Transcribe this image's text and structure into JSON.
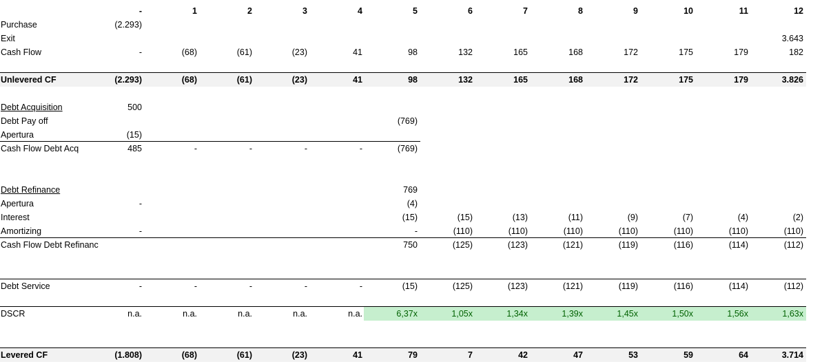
{
  "table": {
    "header": [
      "-",
      "1",
      "2",
      "3",
      "4",
      "5",
      "6",
      "7",
      "8",
      "9",
      "10",
      "11",
      "12"
    ],
    "rows": [
      {
        "label": "Purchase",
        "cells": [
          "(2.293)",
          null,
          null,
          null,
          null,
          null,
          null,
          null,
          null,
          null,
          null,
          null,
          null
        ]
      },
      {
        "label": "Exit",
        "cells": [
          null,
          null,
          null,
          null,
          null,
          null,
          null,
          null,
          null,
          null,
          null,
          null,
          "3.643"
        ]
      },
      {
        "label": "Cash Flow",
        "cells": [
          "-",
          "(68)",
          "(61)",
          "(23)",
          "41",
          "98",
          "132",
          "165",
          "168",
          "172",
          "175",
          "179",
          "182"
        ]
      },
      {
        "label": "Unlevered CF",
        "cells": [
          "(2.293)",
          "(68)",
          "(61)",
          "(23)",
          "41",
          "98",
          "132",
          "165",
          "168",
          "172",
          "175",
          "179",
          "3.826"
        ]
      },
      {
        "label": "Debt Acquisition",
        "cells": [
          "500",
          null,
          null,
          null,
          null,
          null,
          null,
          null,
          null,
          null,
          null,
          null,
          null
        ]
      },
      {
        "label": "Debt Pay off",
        "cells": [
          null,
          null,
          null,
          null,
          null,
          "(769)",
          null,
          null,
          null,
          null,
          null,
          null,
          null
        ]
      },
      {
        "label": "Apertura",
        "cells": [
          "(15)",
          null,
          null,
          null,
          null,
          null,
          null,
          null,
          null,
          null,
          null,
          null,
          null
        ]
      },
      {
        "label": "Cash Flow Debt Acq",
        "cells": [
          "485",
          "-",
          "-",
          "-",
          "-",
          "(769)",
          null,
          null,
          null,
          null,
          null,
          null,
          null
        ]
      },
      {
        "label": "Debt Refinance",
        "cells": [
          null,
          null,
          null,
          null,
          null,
          "769",
          null,
          null,
          null,
          null,
          null,
          null,
          null
        ]
      },
      {
        "label": "Apertura",
        "cells": [
          "-",
          null,
          null,
          null,
          null,
          "(4)",
          null,
          null,
          null,
          null,
          null,
          null,
          null
        ]
      },
      {
        "label": "Interest",
        "cells": [
          null,
          null,
          null,
          null,
          null,
          "(15)",
          "(15)",
          "(13)",
          "(11)",
          "(9)",
          "(7)",
          "(4)",
          "(2)"
        ]
      },
      {
        "label": "Amortizing",
        "cells": [
          "-",
          null,
          null,
          null,
          null,
          "-",
          "(110)",
          "(110)",
          "(110)",
          "(110)",
          "(110)",
          "(110)",
          "(110)"
        ]
      },
      {
        "label": "Cash Flow Debt Refinanc",
        "cells": [
          null,
          null,
          null,
          null,
          null,
          "750",
          "(125)",
          "(123)",
          "(121)",
          "(119)",
          "(116)",
          "(114)",
          "(112)"
        ]
      },
      {
        "label": "Debt Service",
        "cells": [
          "-",
          "-",
          "-",
          "-",
          "-",
          "(15)",
          "(125)",
          "(123)",
          "(121)",
          "(119)",
          "(116)",
          "(114)",
          "(112)"
        ]
      },
      {
        "label": "DSCR",
        "cells": [
          "n.a.",
          "n.a.",
          "n.a.",
          "n.a.",
          "n.a.",
          "6,37x",
          "1,05x",
          "1,34x",
          "1,39x",
          "1,45x",
          "1,50x",
          "1,56x",
          "1,63x"
        ]
      },
      {
        "label": "Levered CF",
        "cells": [
          "(1.808)",
          "(68)",
          "(61)",
          "(23)",
          "41",
          "79",
          "7",
          "42",
          "47",
          "53",
          "59",
          "64",
          "3.714"
        ]
      }
    ]
  }
}
